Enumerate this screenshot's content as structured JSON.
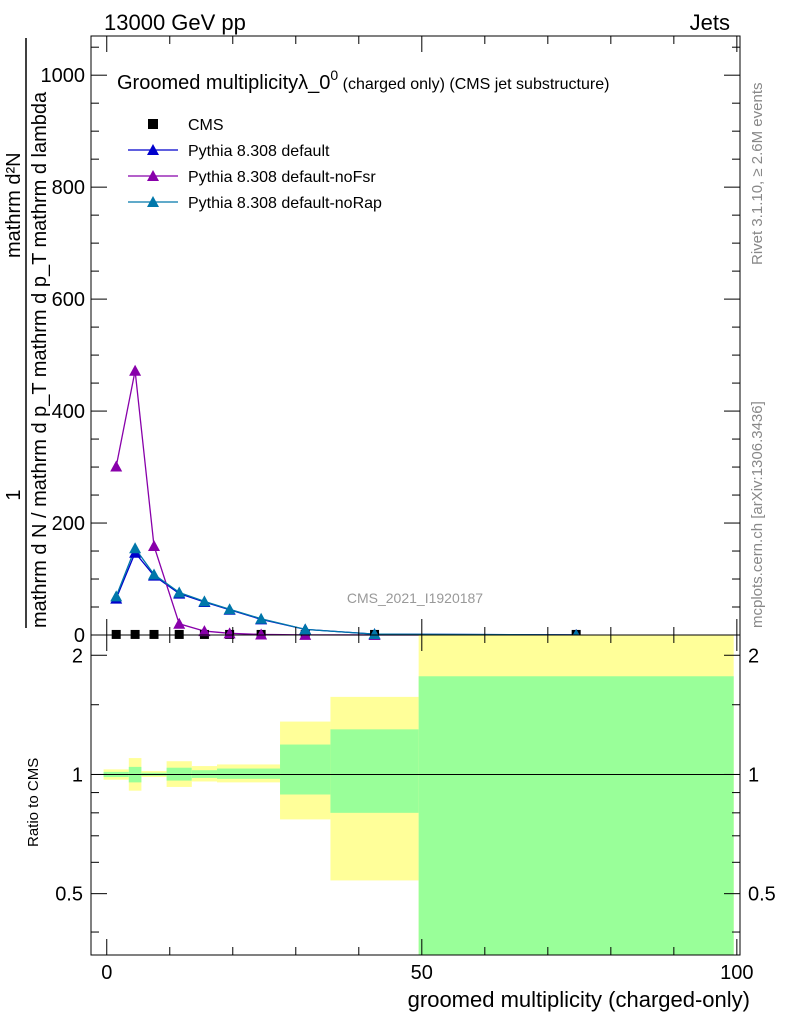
{
  "header": {
    "left": "13000 GeV pp",
    "right": "Jets",
    "side_top": "Rivet 3.1.10, ≥ 2.6M events",
    "side_bottom": "mcplots.cern.ch [arXiv:1306.3436]",
    "watermark": "CMS_2021_I1920187"
  },
  "colors": {
    "cms": "#000000",
    "default": "#0000cc",
    "noFsr": "#8800aa",
    "noRap": "#0077aa",
    "band_outer": "#ffff99",
    "band_inner": "#99ff99"
  },
  "chart_data": [
    {
      "type": "line",
      "title": "Groomed multiplicityλ_0",
      "title_sup": "0",
      "title_suffix": " (charged only) (CMS jet substructure)",
      "ylabel_numerator": "mathrm d²N",
      "ylabel_denominator": "mathrm d N / mathrm d p_T mathrm d p_T mathrm d lambda",
      "ylabel_prefix": "1",
      "xlim": [
        -2.5,
        100.5
      ],
      "ylim": [
        0,
        1070
      ],
      "yticks": [
        0,
        200,
        400,
        600,
        800,
        1000
      ],
      "yticklabels": [
        "0",
        "200",
        "400",
        "600",
        "800",
        "1000"
      ],
      "grid": false,
      "legend_position": "top-left",
      "series": [
        {
          "name": "CMS",
          "key": "cms",
          "marker": "square",
          "x": [
            1.5,
            4.5,
            7.5,
            11.5,
            15.5,
            19.5,
            24.5,
            31.5,
            42.5,
            74.5
          ],
          "y": [
            1,
            1,
            1,
            1,
            1,
            1,
            1,
            1,
            1,
            1
          ]
        },
        {
          "name": "Pythia 8.308 default",
          "key": "default",
          "marker": "triangle",
          "x": [
            1.5,
            4.5,
            7.5,
            11.5,
            15.5,
            19.5,
            24.5,
            31.5,
            42.5,
            74.5
          ],
          "y": [
            65,
            147,
            106,
            74,
            59,
            45,
            28,
            10,
            1.5,
            0.1
          ]
        },
        {
          "name": "Pythia 8.308 default-noFsr",
          "key": "noFsr",
          "marker": "triangle",
          "x": [
            1.5,
            4.5,
            7.5,
            11.5,
            15.5,
            19.5,
            24.5,
            31.5,
            42.5,
            74.5
          ],
          "y": [
            301,
            472,
            159,
            20,
            7,
            3,
            1,
            0.2,
            0.1,
            0.05
          ]
        },
        {
          "name": "Pythia 8.308 default-noRap",
          "key": "noRap",
          "marker": "triangle",
          "x": [
            1.5,
            4.5,
            7.5,
            11.5,
            15.5,
            19.5,
            24.5,
            31.5,
            42.5,
            74.5
          ],
          "y": [
            69,
            155,
            108,
            76,
            60,
            46,
            29,
            10,
            1.6,
            0.1
          ]
        }
      ]
    },
    {
      "type": "area",
      "ylabel": "Ratio to CMS",
      "xlabel": "groomed multiplicity (charged-only)",
      "xlim": [
        -2.5,
        100.5
      ],
      "ylim": [
        0.35,
        2.25
      ],
      "yticks": [
        0.5,
        1,
        2
      ],
      "yticklabels": [
        "0.5",
        "1",
        "2"
      ],
      "xticks": [
        0,
        50,
        100
      ],
      "xticklabels": [
        "0",
        "50",
        "100"
      ],
      "reference_line": 1,
      "bins": [
        {
          "lo": -0.5,
          "hi": 3.5,
          "outer": [
            0.97,
            1.03
          ],
          "inner": [
            0.985,
            1.015
          ]
        },
        {
          "lo": 3.5,
          "hi": 5.5,
          "outer": [
            0.91,
            1.1
          ],
          "inner": [
            0.955,
            1.045
          ]
        },
        {
          "lo": 5.5,
          "hi": 9.5,
          "outer": [
            0.985,
            1.02
          ],
          "inner": [
            0.993,
            1.01
          ]
        },
        {
          "lo": 9.5,
          "hi": 13.5,
          "outer": [
            0.93,
            1.08
          ],
          "inner": [
            0.965,
            1.04
          ]
        },
        {
          "lo": 13.5,
          "hi": 17.5,
          "outer": [
            0.96,
            1.05
          ],
          "inner": [
            0.98,
            1.025
          ]
        },
        {
          "lo": 17.5,
          "hi": 27.5,
          "outer": [
            0.955,
            1.06
          ],
          "inner": [
            0.975,
            1.035
          ]
        },
        {
          "lo": 27.5,
          "hi": 35.5,
          "outer": [
            0.77,
            1.36
          ],
          "inner": [
            0.89,
            1.19
          ]
        },
        {
          "lo": 35.5,
          "hi": 49.5,
          "outer": [
            0.54,
            1.57
          ],
          "inner": [
            0.8,
            1.3
          ]
        },
        {
          "lo": 49.5,
          "hi": 99.5,
          "outer": [
            0.35,
            2.25
          ],
          "inner": [
            0.35,
            1.77
          ]
        }
      ]
    }
  ]
}
